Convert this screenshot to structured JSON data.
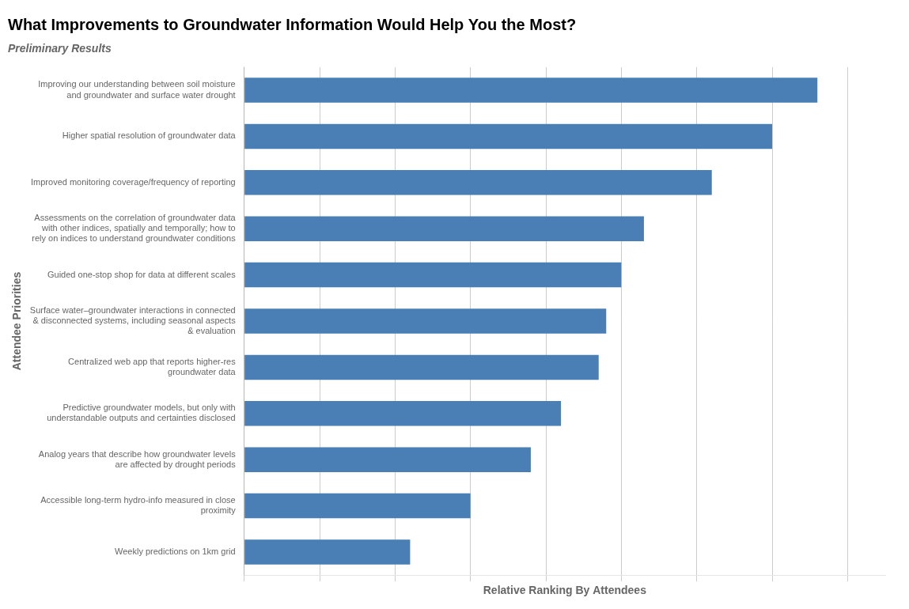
{
  "chart_data": {
    "type": "bar",
    "orientation": "horizontal",
    "title": "What Improvements to Groundwater Information Would Help You the Most?",
    "subtitle": "Preliminary Results",
    "xlabel": "Relative Ranking By Attendees",
    "ylabel": "Attendee Priorities",
    "categories": [
      "Weekly predictions on 1km grid",
      "Accessible long-term hydro-info measured in close\nproximity",
      "Analog years that describe how groundwater levels\nare affected by drought periods",
      "Predictive groundwater models, but only with\nunderstandable outputs and certainties disclosed",
      "Centralized web app that reports higher-res\ngroundwater data",
      "Surface water–groundwater interactions in connected\n& disconnected systems, including seasonal aspects\n& evaluation",
      "Guided one-stop shop for data at different scales",
      "Assessments on the correlation of groundwater data\nwith other indices, spatially and temporally; how to\nrely on indices to understand groundwater conditions",
      "Improved monitoring coverage/frequency of reporting",
      "Higher spatial resolution of groundwater data",
      "Improving our understanding between soil moisture\nand groundwater and surface water drought"
    ],
    "values": [
      22,
      30,
      38,
      42,
      47,
      48,
      50,
      53,
      62,
      70,
      76
    ],
    "color": "#4a7fb5",
    "xlim": [
      0,
      85
    ],
    "xticks": [
      0,
      10,
      20,
      30,
      40,
      50,
      60,
      70,
      80
    ],
    "grid": true,
    "tick_labels": "y"
  }
}
